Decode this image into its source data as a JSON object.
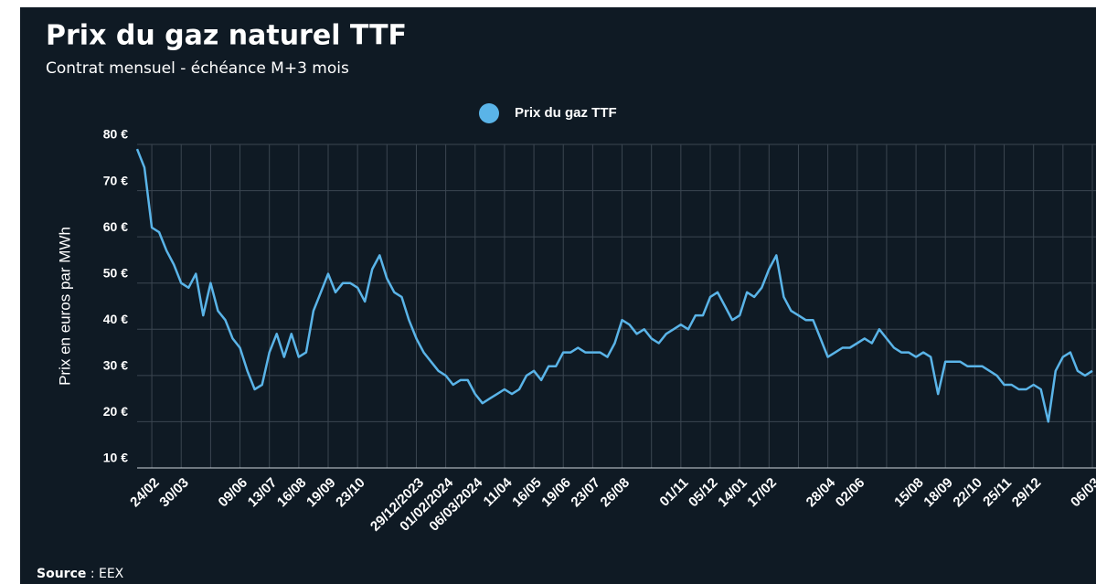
{
  "chart_data": {
    "type": "line",
    "title": "Prix du gaz naturel TTF",
    "subtitle": "Contrat mensuel - échéance M+3 mois",
    "y_label": "Prix en euros par MWh",
    "source_label": "Source",
    "source": ": EEX",
    "grid": true,
    "legend": "top",
    "ylim": [
      10,
      80
    ],
    "yticks": [
      {
        "value": 10,
        "label": "10 €"
      },
      {
        "value": 20,
        "label": "20 €"
      },
      {
        "value": 30,
        "label": "30 €"
      },
      {
        "value": 40,
        "label": "40 €"
      },
      {
        "value": 50,
        "label": "50 €"
      },
      {
        "value": 60,
        "label": "60 €"
      },
      {
        "value": 70,
        "label": "70 €"
      },
      {
        "value": 80,
        "label": "80 €"
      }
    ],
    "categories": [
      null,
      null,
      "24/02",
      null,
      null,
      null,
      "30/03",
      null,
      null,
      null,
      null,
      null,
      null,
      null,
      "09/06",
      null,
      null,
      null,
      "13/07",
      null,
      null,
      null,
      "16/08",
      null,
      null,
      null,
      "19/09",
      null,
      null,
      null,
      "23/10",
      null,
      null,
      null,
      null,
      null,
      null,
      null,
      "29/12/2023",
      null,
      null,
      null,
      "01/02/2024",
      null,
      null,
      null,
      "06/03/2024",
      null,
      null,
      null,
      "11/04",
      null,
      null,
      null,
      "16/05",
      null,
      null,
      null,
      "19/06",
      null,
      null,
      null,
      "23/07",
      null,
      null,
      null,
      "26/08",
      null,
      null,
      null,
      null,
      null,
      null,
      null,
      "01/11",
      null,
      null,
      null,
      "05/12",
      null,
      null,
      null,
      "14/01",
      null,
      null,
      null,
      "17/02",
      null,
      null,
      null,
      null,
      null,
      null,
      null,
      "28/04",
      null,
      null,
      null,
      "02/06",
      null,
      null,
      null,
      null,
      null,
      null,
      null,
      "15/08",
      null,
      null,
      null,
      "18/09",
      null,
      null,
      null,
      "22/10",
      null,
      null,
      null,
      "25/11",
      null,
      null,
      null,
      "29/12",
      null,
      null,
      null,
      null,
      null,
      null,
      null,
      "06/03"
    ],
    "series": [
      {
        "name": "Prix du gaz TTF",
        "color": "#5ab4e8",
        "values": [
          79,
          75,
          62,
          61,
          57,
          54,
          50,
          49,
          52,
          43,
          50,
          44,
          42,
          38,
          36,
          31,
          27,
          28,
          35,
          39,
          34,
          39,
          34,
          35,
          44,
          48,
          52,
          48,
          50,
          50,
          49,
          46,
          53,
          56,
          51,
          48,
          47,
          42,
          38,
          35,
          33,
          31,
          30,
          28,
          29,
          29,
          26,
          24,
          25,
          26,
          27,
          26,
          27,
          30,
          31,
          29,
          32,
          32,
          35,
          35,
          36,
          35,
          35,
          35,
          34,
          37,
          42,
          41,
          39,
          40,
          38,
          37,
          39,
          40,
          41,
          40,
          43,
          43,
          47,
          48,
          45,
          42,
          43,
          48,
          47,
          49,
          53,
          56,
          47,
          44,
          43,
          42,
          42,
          38,
          34,
          35,
          36,
          36,
          37,
          38,
          37,
          40,
          38,
          36,
          35,
          35,
          34,
          35,
          34,
          26,
          33,
          33,
          33,
          32,
          32,
          32,
          31,
          30,
          28,
          28,
          27,
          27,
          28,
          27,
          20,
          31,
          34,
          35,
          31,
          30,
          31
        ]
      }
    ]
  }
}
